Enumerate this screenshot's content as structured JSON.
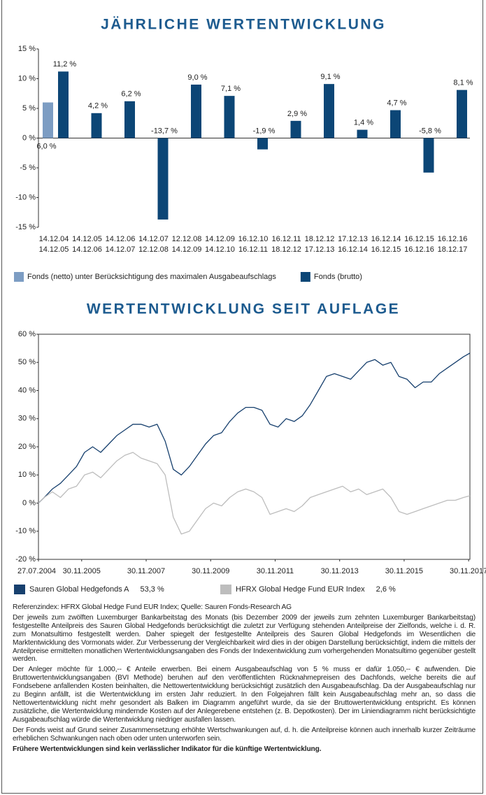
{
  "chart_data": [
    {
      "type": "bar",
      "title": "JÄHRLICHE WERTENTWICKLUNG",
      "categories": [
        [
          "14.12.04",
          "14.12.05"
        ],
        [
          "14.12.05",
          "14.12.06"
        ],
        [
          "14.12.06",
          "14.12.07"
        ],
        [
          "14.12.07",
          "12.12.08"
        ],
        [
          "12.12.08",
          "14.12.09"
        ],
        [
          "14.12.09",
          "14.12.10"
        ],
        [
          "16.12.10",
          "16.12.11"
        ],
        [
          "16.12.11",
          "18.12.12"
        ],
        [
          "18.12.12",
          "17.12.13"
        ],
        [
          "17.12.13",
          "16.12.14"
        ],
        [
          "16.12.14",
          "16.12.15"
        ],
        [
          "16.12.15",
          "16.12.16"
        ],
        [
          "16.12.16",
          "18.12.17"
        ]
      ],
      "series": [
        {
          "name": "Fonds (netto) unter Berücksichtigung des maximalen Ausgabeaufschlags",
          "color": "#7d9dc3",
          "values": [
            6.0,
            null,
            null,
            null,
            null,
            null,
            null,
            null,
            null,
            null,
            null,
            null,
            null
          ],
          "value_labels": [
            "6,0 %",
            null,
            null,
            null,
            null,
            null,
            null,
            null,
            null,
            null,
            null,
            null,
            null
          ]
        },
        {
          "name": "Fonds (brutto)",
          "color": "#0c4676",
          "values": [
            11.2,
            4.2,
            6.2,
            -13.7,
            9.0,
            7.1,
            -1.9,
            2.9,
            9.1,
            1.4,
            4.7,
            -5.8,
            8.1
          ],
          "value_labels": [
            "11,2 %",
            "4,2 %",
            "6,2 %",
            "-13,7 %",
            "9,0 %",
            "7,1 %",
            "-1,9 %",
            "2,9 %",
            "9,1 %",
            "1,4 %",
            "4,7 %",
            "-5,8 %",
            "8,1 %"
          ]
        }
      ],
      "ylim": [
        -15,
        15
      ],
      "yticks": [
        {
          "value": 15,
          "label": "15 %"
        },
        {
          "value": 10,
          "label": "10 %"
        },
        {
          "value": 5,
          "label": "5 %"
        },
        {
          "value": 0,
          "label": "0 %"
        },
        {
          "value": -5,
          "label": "-5 %"
        },
        {
          "value": -10,
          "label": "-10 %"
        },
        {
          "value": -15,
          "label": "-15 %"
        }
      ],
      "grid": false
    },
    {
      "type": "line",
      "title": "WERTENTWICKLUNG SEIT AUFLAGE",
      "x": [
        2004.57,
        2004.75,
        2005.0,
        2005.25,
        2005.5,
        2005.75,
        2006.0,
        2006.25,
        2006.5,
        2006.75,
        2007.0,
        2007.25,
        2007.5,
        2007.75,
        2008.0,
        2008.25,
        2008.5,
        2008.75,
        2009.0,
        2009.25,
        2009.5,
        2009.75,
        2010.0,
        2010.25,
        2010.5,
        2010.75,
        2011.0,
        2011.25,
        2011.5,
        2011.75,
        2012.0,
        2012.25,
        2012.5,
        2012.75,
        2013.0,
        2013.25,
        2013.5,
        2013.75,
        2014.0,
        2014.25,
        2014.5,
        2014.75,
        2015.0,
        2015.25,
        2015.5,
        2015.75,
        2016.0,
        2016.25,
        2016.5,
        2016.75,
        2017.0,
        2017.25,
        2017.5,
        2017.75,
        2017.95
      ],
      "series": [
        {
          "name": "Sauren Global Hedgefonds A",
          "end_label": "53,3 %",
          "color": "#17406e",
          "values": [
            0,
            2,
            5,
            7,
            10,
            13,
            18,
            20,
            18,
            21,
            24,
            26,
            28,
            28,
            27,
            28,
            22,
            12,
            10,
            13,
            17,
            21,
            24,
            25,
            29,
            32,
            34,
            34,
            33,
            28,
            27,
            30,
            29,
            31,
            35,
            40,
            45,
            46,
            45,
            44,
            47,
            50,
            51,
            49,
            50,
            45,
            44,
            41,
            43,
            43,
            46,
            48,
            50,
            52,
            53.3
          ]
        },
        {
          "name": "HFRX Global Hedge Fund EUR Index",
          "end_label": "2,6 %",
          "color": "#bdbdbd",
          "values": [
            0,
            2,
            4,
            2,
            5,
            6,
            10,
            11,
            9,
            12,
            15,
            17,
            18,
            16,
            15,
            14,
            10,
            -5,
            -11,
            -10,
            -6,
            -2,
            0,
            -1,
            2,
            4,
            5,
            4,
            2,
            -4,
            -3,
            -2,
            -3,
            -1,
            2,
            3,
            4,
            5,
            6,
            4,
            5,
            3,
            4,
            5,
            2,
            -3,
            -4,
            -3,
            -2,
            -1,
            0,
            1,
            1,
            2,
            2.6
          ]
        }
      ],
      "xlim": [
        2004.57,
        2017.95
      ],
      "xticks": [
        {
          "value": 2004.57,
          "label": "27.07.2004"
        },
        {
          "value": 2005.91,
          "label": "30.11.2005"
        },
        {
          "value": 2007.91,
          "label": "30.11.2007"
        },
        {
          "value": 2009.91,
          "label": "30.11.2009"
        },
        {
          "value": 2011.91,
          "label": "30.11.2011"
        },
        {
          "value": 2013.91,
          "label": "30.11.2013"
        },
        {
          "value": 2015.91,
          "label": "30.11.2015"
        },
        {
          "value": 2017.91,
          "label": "30.11.2017"
        }
      ],
      "ylim": [
        -20,
        60
      ],
      "yticks": [
        {
          "value": 60,
          "label": "60 %"
        },
        {
          "value": 50,
          "label": "50 %"
        },
        {
          "value": 40,
          "label": "40 %"
        },
        {
          "value": 30,
          "label": "30 %"
        },
        {
          "value": 20,
          "label": "20 %"
        },
        {
          "value": 10,
          "label": "10 %"
        },
        {
          "value": 0,
          "label": "0 %"
        },
        {
          "value": -10,
          "label": "-10 %"
        },
        {
          "value": -20,
          "label": "-20 %"
        }
      ],
      "grid": false
    }
  ],
  "notes": {
    "reference": "Referenzindex: HFRX Global Hedge Fund EUR Index; Quelle: Sauren Fonds-Research AG",
    "paragraphs": [
      "Der jeweils zum zwölften Luxemburger Bankarbeitstag des Monats (bis Dezember 2009 der jeweils zum zehnten Luxemburger Bankarbeitstag) festgestellte Anteilpreis des Sauren Global Hedgefonds berücksichtigt die zuletzt zur Verfügung stehenden Anteilpreise der Zielfonds, welche i. d. R. zum Monatsultimo festgestellt werden. Daher spiegelt der festgestellte Anteilpreis des Sauren Global Hedgefonds im Wesentlichen die Marktentwicklung des Vormonats wider. Zur Verbesserung der Vergleichbarkeit wird dies in der obigen Darstellung berücksichtigt, indem die mittels der Anteilpreise ermittelten monatlichen Wertentwicklungsangaben des Fonds der Indexentwicklung zum vorhergehenden Monatsultimo gegenüber gestellt werden.",
      "Der Anleger möchte für 1.000,-- € Anteile erwerben. Bei einem Ausgabeaufschlag von 5 % muss er dafür 1.050,-- € aufwenden. Die Bruttowertentwicklungsangaben (BVI Methode) beruhen auf den veröffentlichten Rücknahmepreisen des Dachfonds, welche bereits die auf Fondsebene anfallenden Kosten beinhalten, die Nettowertentwicklung berücksichtigt zusätzlich den Ausgabeaufschlag. Da der Ausgabeaufschlag nur zu Beginn anfällt, ist die Wertentwicklung im ersten Jahr reduziert. In den Folgejahren fällt kein Ausgabeaufschlag mehr an, so dass die Nettowertentwicklung nicht mehr gesondert als Balken im Diagramm angeführt wurde, da sie der Bruttowertentwicklung entspricht. Es können zusätzliche, die Wertentwicklung mindernde Kosten auf der Anlegerebene entstehen (z. B. Depotkosten). Der im Liniendiagramm nicht berücksichtigte Ausgabeaufschlag würde die Wertentwicklung niedriger ausfallen lassen.",
      "Der Fonds weist auf Grund seiner Zusammensetzung erhöhte Wertschwankungen auf, d. h. die Anteilpreise können auch innerhalb kurzer Zeiträume erheblichen Schwankungen nach oben oder unten unterworfen sein."
    ],
    "disclaimer": "Frühere Wertentwicklungen sind kein verlässlicher Indikator für die künftige Wertentwicklung."
  }
}
